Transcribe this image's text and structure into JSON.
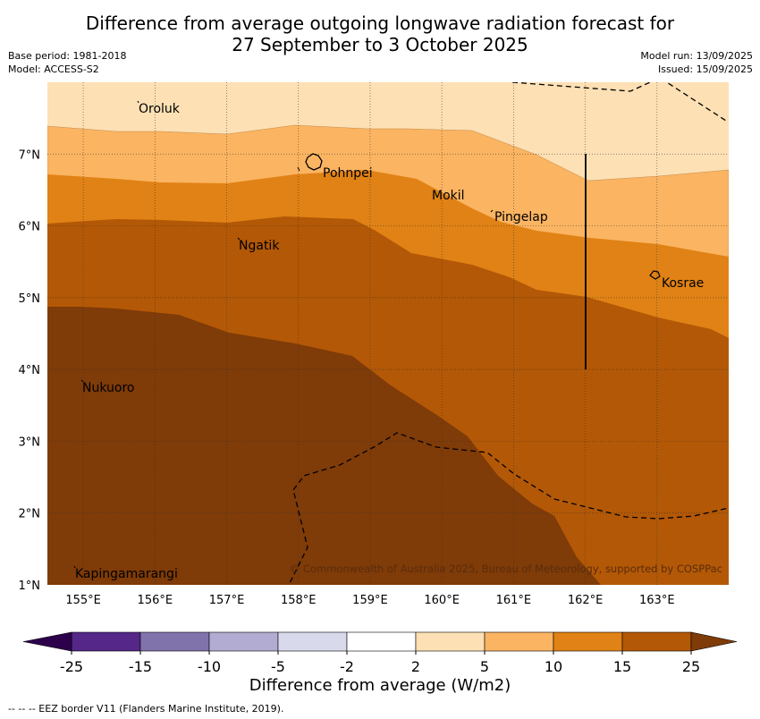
{
  "title": {
    "line1": "Difference from average outgoing longwave radiation forecast for",
    "line2": "27 September to 3 October 2025"
  },
  "meta_left": {
    "base_period": "Base period: 1981-2018",
    "model": "Model: ACCESS-S2"
  },
  "meta_right": {
    "model_run": "Model run: 13/09/2025",
    "issued": "Issued: 15/09/2025"
  },
  "map": {
    "lon_range": [
      154.5,
      164.0
    ],
    "lat_range": [
      1.0,
      8.0
    ],
    "lon_ticks": [
      "155°E",
      "156°E",
      "157°E",
      "158°E",
      "159°E",
      "160°E",
      "161°E",
      "162°E",
      "163°E"
    ],
    "lat_ticks": [
      "1°N",
      "2°N",
      "3°N",
      "4°N",
      "5°N",
      "6°N",
      "7°N"
    ],
    "places": [
      {
        "name": "Oroluk",
        "lon": 155.8,
        "lat": 7.6
      },
      {
        "name": "Pohnpei",
        "lon": 158.3,
        "lat": 6.9
      },
      {
        "name": "Mokil",
        "lon": 160.0,
        "lat": 6.4
      },
      {
        "name": "Pingelap",
        "lon": 160.8,
        "lat": 6.1
      },
      {
        "name": "Ngatik",
        "lon": 157.2,
        "lat": 5.8
      },
      {
        "name": "Kosrae",
        "lon": 163.0,
        "lat": 5.2
      },
      {
        "name": "Nukuoro",
        "lon": 155.0,
        "lat": 3.7
      },
      {
        "name": "Kapingamarangi",
        "lon": 154.8,
        "lat": 1.1
      }
    ],
    "copyright": "© Commonwealth of Australia 2025, Bureau of Meteorology, supported by COSPPac",
    "shading_colors": {
      "2_to_5": "#fde0b4",
      "5_to_10": "#fbb461",
      "10_to_15": "#e08215",
      "15_to_25": "#b35806",
      "above_25": "#7f3b08"
    }
  },
  "colorbar": {
    "ticks": [
      "-25",
      "-15",
      "-10",
      "-5",
      "-2",
      "2",
      "5",
      "10",
      "15",
      "25"
    ],
    "colors": [
      "#542788",
      "#8073ac",
      "#b2abd2",
      "#d8daeb",
      "#ffffff",
      "#fde0b4",
      "#fbb461",
      "#e08215",
      "#b35806"
    ],
    "low_extend_color": "#2d004b",
    "high_extend_color": "#7f3b08",
    "title": "Difference from average (W/m2)"
  },
  "footnote": "--  --  -- EEZ border V11 (Flanders Marine Institute, 2019)."
}
